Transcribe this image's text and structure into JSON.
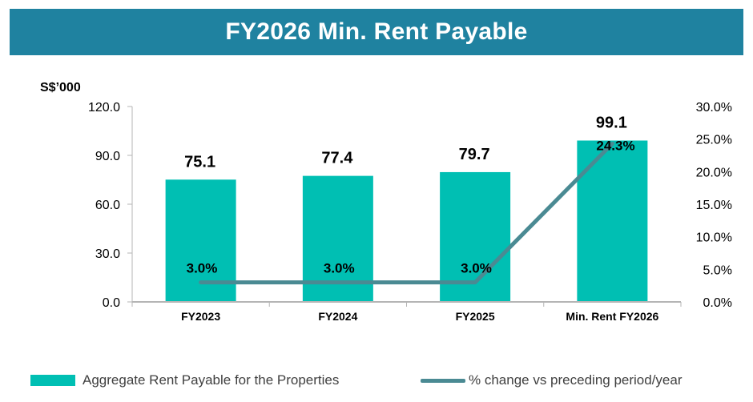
{
  "title": "FY2026 Min. Rent Payable",
  "colors": {
    "banner": "#1f82a0",
    "bar": "#00bfb3",
    "line": "#4a8a93",
    "axis": "#b5b5b5"
  },
  "chart_data": {
    "type": "bar",
    "title": "FY2026 Min. Rent Payable",
    "ylabel": "S$’000",
    "ylim": [
      0,
      120
    ],
    "y_ticks": [
      "0.0",
      "30.0",
      "60.0",
      "90.0",
      "120.0"
    ],
    "y2lim": [
      0,
      30
    ],
    "y2_ticks": [
      "0.0%",
      "5.0%",
      "10.0%",
      "15.0%",
      "20.0%",
      "25.0%",
      "30.0%"
    ],
    "categories": [
      "FY2023",
      "FY2024",
      "FY2025",
      "Min. Rent FY2026"
    ],
    "series": [
      {
        "name": "Aggregate Rent Payable for the Properties",
        "type": "bar",
        "axis": "left",
        "values": [
          75.1,
          77.4,
          79.7,
          99.1
        ],
        "labels": [
          "75.1",
          "77.4",
          "79.7",
          "99.1"
        ]
      },
      {
        "name": "% change vs preceding period/year",
        "type": "line",
        "axis": "right",
        "values": [
          3.0,
          3.0,
          3.0,
          24.3
        ],
        "labels": [
          "3.0%",
          "3.0%",
          "3.0%",
          "24.3%"
        ]
      }
    ],
    "legend": "bottom"
  }
}
